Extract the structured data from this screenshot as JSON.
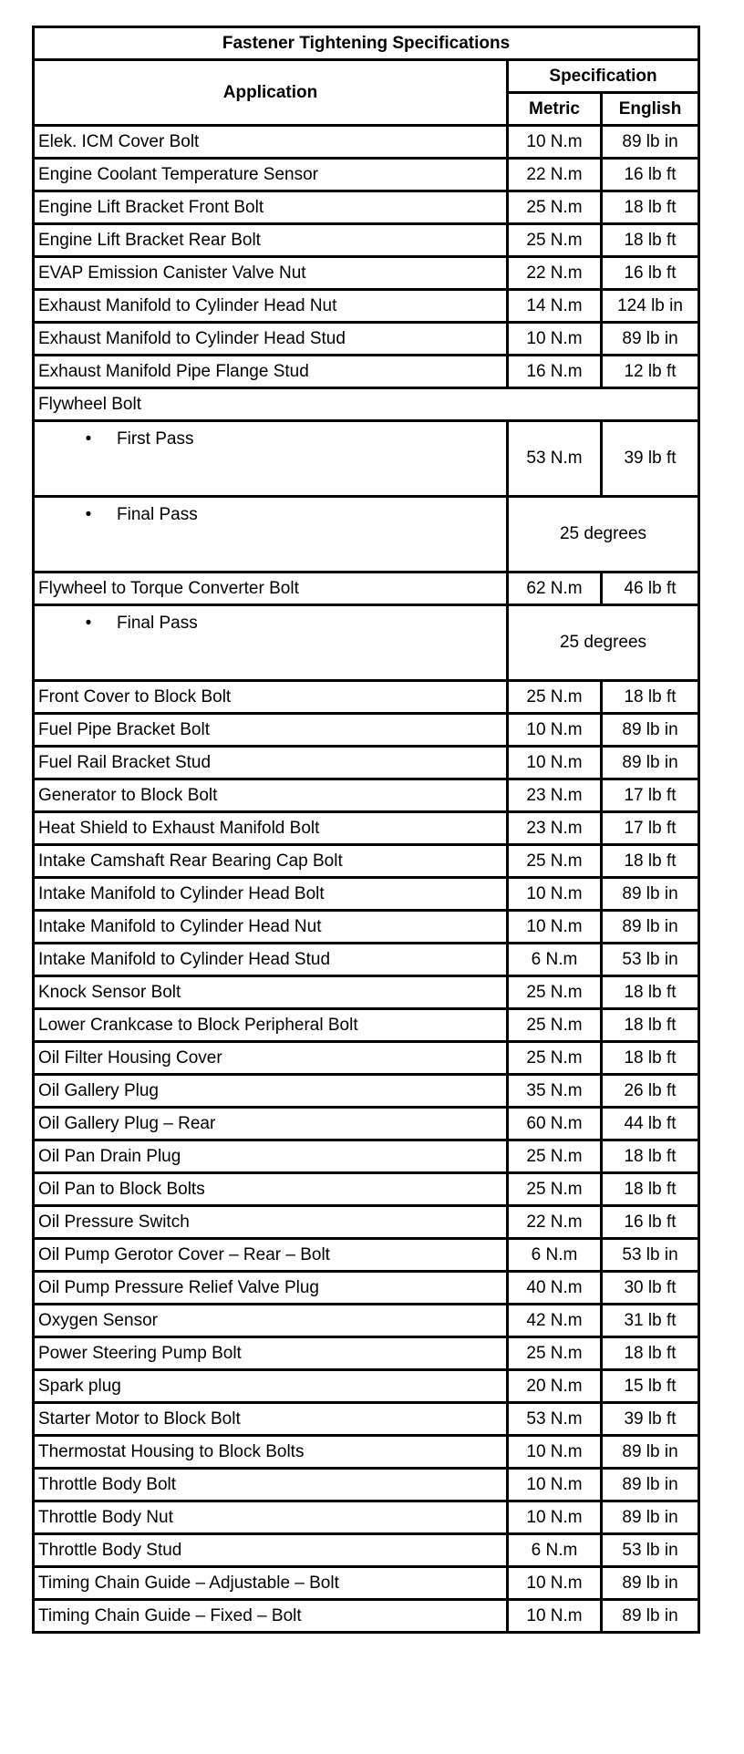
{
  "title": "Fastener Tightening Specifications",
  "headers": {
    "application": "Application",
    "specification": "Specification",
    "metric": "Metric",
    "english": "English"
  },
  "rows": [
    {
      "app": "Elek. ICM Cover Bolt",
      "metric": "10 N.m",
      "english": "89 lb in"
    },
    {
      "app": "Engine Coolant Temperature Sensor",
      "metric": "22 N.m",
      "english": "16 lb ft"
    },
    {
      "app": "Engine Lift Bracket Front Bolt",
      "metric": "25 N.m",
      "english": "18 lb ft"
    },
    {
      "app": "Engine Lift Bracket Rear Bolt",
      "metric": "25 N.m",
      "english": "18 lb ft"
    },
    {
      "app": "EVAP Emission Canister Valve Nut",
      "metric": "22 N.m",
      "english": "16 lb ft"
    },
    {
      "app": "Exhaust Manifold to Cylinder Head Nut",
      "metric": "14 N.m",
      "english": "124 lb in"
    },
    {
      "app": "Exhaust Manifold to Cylinder Head Stud",
      "metric": "10 N.m",
      "english": "89 lb in"
    },
    {
      "app": "Exhaust Manifold Pipe Flange Stud",
      "metric": "16 N.m",
      "english": "12 lb ft"
    },
    {
      "app": "Flywheel Bolt",
      "type": "group"
    },
    {
      "app": "First Pass",
      "type": "bullet",
      "metric": "53 N.m",
      "english": "39 lb ft"
    },
    {
      "app": "Final Pass",
      "type": "bullet",
      "combined": "25 degrees"
    },
    {
      "app": "Flywheel to Torque Converter Bolt",
      "metric": "62 N.m",
      "english": "46 lb ft"
    },
    {
      "app": "Final Pass",
      "type": "bullet",
      "combined": "25 degrees"
    },
    {
      "app": "Front Cover to Block Bolt",
      "metric": "25 N.m",
      "english": "18 lb ft"
    },
    {
      "app": "Fuel Pipe Bracket Bolt",
      "metric": "10 N.m",
      "english": "89 lb in"
    },
    {
      "app": "Fuel Rail Bracket Stud",
      "metric": "10 N.m",
      "english": "89 lb in"
    },
    {
      "app": "Generator to Block Bolt",
      "metric": "23 N.m",
      "english": "17 lb ft"
    },
    {
      "app": "Heat Shield to Exhaust Manifold Bolt",
      "metric": "23 N.m",
      "english": "17 lb ft"
    },
    {
      "app": "Intake Camshaft Rear Bearing Cap Bolt",
      "metric": "25 N.m",
      "english": "18 lb ft"
    },
    {
      "app": "Intake Manifold to Cylinder Head Bolt",
      "metric": "10 N.m",
      "english": "89 lb in"
    },
    {
      "app": "Intake Manifold to Cylinder Head Nut",
      "metric": "10 N.m",
      "english": "89 lb in"
    },
    {
      "app": "Intake Manifold to Cylinder Head Stud",
      "metric": "6 N.m",
      "english": "53 lb in"
    },
    {
      "app": "Knock Sensor Bolt",
      "metric": "25 N.m",
      "english": "18 lb ft"
    },
    {
      "app": "Lower Crankcase to Block Peripheral Bolt",
      "metric": "25 N.m",
      "english": "18 lb ft"
    },
    {
      "app": "Oil Filter Housing Cover",
      "metric": "25 N.m",
      "english": "18 lb ft"
    },
    {
      "app": "Oil Gallery Plug",
      "metric": "35 N.m",
      "english": "26 lb ft"
    },
    {
      "app": "Oil Gallery Plug – Rear",
      "metric": "60 N.m",
      "english": "44 lb ft"
    },
    {
      "app": "Oil Pan Drain Plug",
      "metric": "25 N.m",
      "english": "18 lb ft"
    },
    {
      "app": "Oil Pan to Block Bolts",
      "metric": "25 N.m",
      "english": "18 lb ft"
    },
    {
      "app": "Oil Pressure Switch",
      "metric": "22 N.m",
      "english": "16 lb ft"
    },
    {
      "app": "Oil Pump Gerotor Cover – Rear – Bolt",
      "metric": "6 N.m",
      "english": "53 lb in"
    },
    {
      "app": "Oil Pump Pressure Relief Valve Plug",
      "metric": "40 N.m",
      "english": "30 lb ft"
    },
    {
      "app": "Oxygen Sensor",
      "metric": "42 N.m",
      "english": "31 lb ft"
    },
    {
      "app": "Power Steering Pump Bolt",
      "metric": "25 N.m",
      "english": "18 lb ft"
    },
    {
      "app": "Spark plug",
      "metric": "20 N.m",
      "english": "15 lb ft"
    },
    {
      "app": "Starter Motor to Block Bolt",
      "metric": "53 N.m",
      "english": "39 lb ft"
    },
    {
      "app": "Thermostat Housing to Block Bolts",
      "metric": "10 N.m",
      "english": "89 lb in"
    },
    {
      "app": "Throttle Body Bolt",
      "metric": "10 N.m",
      "english": "89 lb in"
    },
    {
      "app": "Throttle Body Nut",
      "metric": "10 N.m",
      "english": "89 lb in"
    },
    {
      "app": "Throttle Body Stud",
      "metric": "6 N.m",
      "english": "53 lb in"
    },
    {
      "app": "Timing Chain Guide – Adjustable – Bolt",
      "metric": "10 N.m",
      "english": "89 lb in"
    },
    {
      "app": "Timing Chain Guide – Fixed – Bolt",
      "metric": "10 N.m",
      "english": "89 lb in"
    }
  ]
}
